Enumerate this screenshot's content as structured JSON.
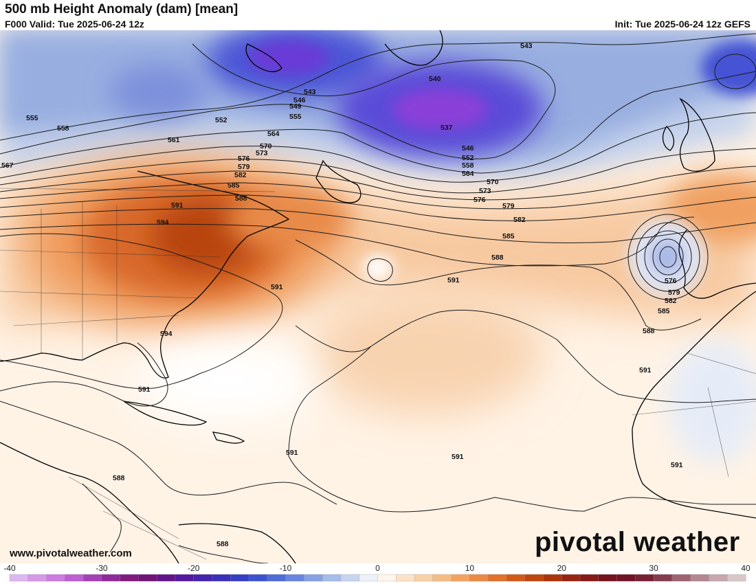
{
  "header": {
    "title": "500 mb Height Anomaly (dam) [mean]",
    "valid": "F000 Valid: Tue 2025-06-24 12z",
    "init": "Init: Tue 2025-06-24 12z GEFS"
  },
  "footer": {
    "site": "www.pivotalweather.com",
    "logo": "pivotal weather"
  },
  "colorbar": {
    "min": -40,
    "max": 40,
    "step": 2,
    "tick_labels": [
      "-40",
      "-30",
      "-20",
      "-10",
      "0",
      "10",
      "20",
      "30",
      "40"
    ]
  },
  "contour_labels": [
    "543",
    "540",
    "537",
    "546",
    "552",
    "558",
    "564",
    "570",
    "573",
    "576",
    "579",
    "582",
    "585",
    "588",
    "591",
    "594",
    "543",
    "546",
    "549",
    "555",
    "552",
    "555",
    "558",
    "561",
    "564",
    "567",
    "570",
    "573",
    "576",
    "579",
    "582",
    "585",
    "588",
    "591",
    "594",
    "591",
    "591",
    "591",
    "591",
    "588",
    "588",
    "576",
    "579",
    "582",
    "585",
    "588",
    "591",
    "591",
    "591"
  ],
  "colors": {
    "negative_strong": "#6a2fd0",
    "negative_mid": "#4a5ad8",
    "negative_light": "#c8d6ee",
    "positive_light": "#fde3c8",
    "positive_mid": "#f2a86a",
    "positive_strong": "#c14a10",
    "coastline": "#000000",
    "contour": "#1a1a1a"
  }
}
